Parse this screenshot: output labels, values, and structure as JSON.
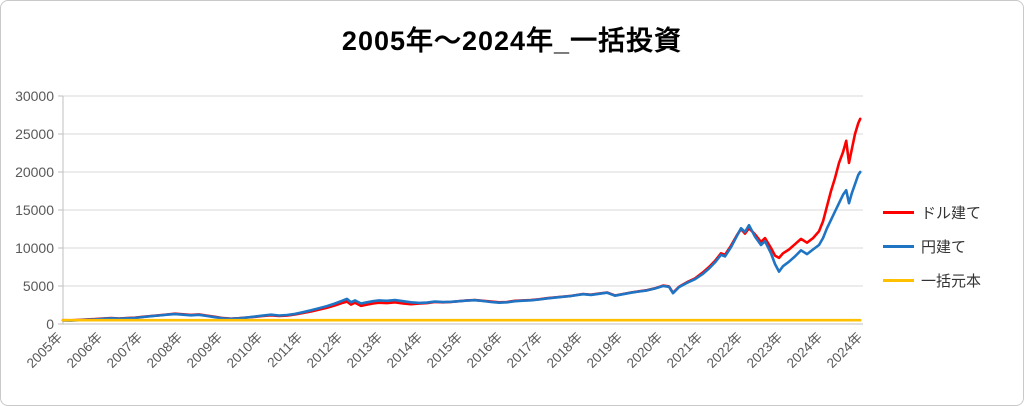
{
  "chart_data": {
    "type": "line",
    "title": "2005年〜2024年_一括投資",
    "xlabel": "",
    "ylabel": "",
    "x_axis": {
      "labels": [
        "2005年",
        "2006年",
        "2007年",
        "2008年",
        "2009年",
        "2010年",
        "2011年",
        "2012年",
        "2013年",
        "2014年",
        "2015年",
        "2016年",
        "2017年",
        "2018年",
        "2019年",
        "2020年",
        "2021年",
        "2022年",
        "2023年",
        "2024年",
        "2024年"
      ],
      "start_year": 2005,
      "years_spanned": 20
    },
    "y_axis": {
      "ticks": [
        0,
        5000,
        10000,
        15000,
        20000,
        25000,
        30000
      ],
      "min": 0,
      "max": 30000
    },
    "grid": true,
    "legend_position": "right",
    "series": [
      {
        "key": "usd",
        "name": "ドル建て",
        "color": "#ff0000",
        "points": [
          [
            2005.0,
            500
          ],
          [
            2005.2,
            490
          ],
          [
            2005.4,
            540
          ],
          [
            2005.6,
            600
          ],
          [
            2005.8,
            640
          ],
          [
            2006.0,
            720
          ],
          [
            2006.2,
            780
          ],
          [
            2006.4,
            730
          ],
          [
            2006.6,
            780
          ],
          [
            2006.8,
            830
          ],
          [
            2007.0,
            950
          ],
          [
            2007.2,
            1050
          ],
          [
            2007.4,
            1150
          ],
          [
            2007.6,
            1250
          ],
          [
            2007.8,
            1350
          ],
          [
            2008.0,
            1280
          ],
          [
            2008.2,
            1200
          ],
          [
            2008.4,
            1260
          ],
          [
            2008.6,
            1100
          ],
          [
            2008.8,
            950
          ],
          [
            2009.0,
            780
          ],
          [
            2009.2,
            700
          ],
          [
            2009.4,
            760
          ],
          [
            2009.6,
            850
          ],
          [
            2009.8,
            950
          ],
          [
            2010.0,
            1050
          ],
          [
            2010.2,
            1150
          ],
          [
            2010.4,
            1050
          ],
          [
            2010.6,
            1100
          ],
          [
            2010.8,
            1250
          ],
          [
            2011.0,
            1450
          ],
          [
            2011.2,
            1650
          ],
          [
            2011.4,
            1900
          ],
          [
            2011.6,
            2150
          ],
          [
            2011.8,
            2450
          ],
          [
            2012.0,
            2800
          ],
          [
            2012.1,
            2950
          ],
          [
            2012.2,
            2550
          ],
          [
            2012.3,
            2800
          ],
          [
            2012.45,
            2400
          ],
          [
            2012.6,
            2550
          ],
          [
            2012.75,
            2700
          ],
          [
            2012.9,
            2800
          ],
          [
            2013.1,
            2750
          ],
          [
            2013.3,
            2850
          ],
          [
            2013.5,
            2700
          ],
          [
            2013.7,
            2600
          ],
          [
            2013.9,
            2680
          ],
          [
            2014.1,
            2750
          ],
          [
            2014.3,
            2900
          ],
          [
            2014.5,
            2850
          ],
          [
            2014.7,
            2900
          ],
          [
            2014.9,
            3000
          ],
          [
            2015.1,
            3100
          ],
          [
            2015.3,
            3150
          ],
          [
            2015.5,
            3050
          ],
          [
            2015.7,
            2950
          ],
          [
            2015.9,
            2850
          ],
          [
            2016.1,
            2900
          ],
          [
            2016.3,
            3050
          ],
          [
            2016.5,
            3100
          ],
          [
            2016.7,
            3150
          ],
          [
            2016.9,
            3250
          ],
          [
            2017.1,
            3400
          ],
          [
            2017.4,
            3550
          ],
          [
            2017.7,
            3700
          ],
          [
            2018.0,
            3950
          ],
          [
            2018.2,
            3850
          ],
          [
            2018.4,
            4000
          ],
          [
            2018.6,
            4150
          ],
          [
            2018.8,
            3750
          ],
          [
            2019.0,
            3950
          ],
          [
            2019.2,
            4150
          ],
          [
            2019.4,
            4300
          ],
          [
            2019.6,
            4450
          ],
          [
            2019.8,
            4700
          ],
          [
            2020.0,
            5050
          ],
          [
            2020.15,
            4950
          ],
          [
            2020.25,
            4100
          ],
          [
            2020.4,
            4900
          ],
          [
            2020.6,
            5500
          ],
          [
            2020.8,
            6000
          ],
          [
            2021.0,
            6800
          ],
          [
            2021.15,
            7500
          ],
          [
            2021.3,
            8300
          ],
          [
            2021.45,
            9300
          ],
          [
            2021.55,
            9100
          ],
          [
            2021.7,
            10300
          ],
          [
            2021.85,
            11700
          ],
          [
            2021.95,
            12500
          ],
          [
            2022.05,
            11900
          ],
          [
            2022.15,
            12600
          ],
          [
            2022.3,
            11800
          ],
          [
            2022.45,
            10800
          ],
          [
            2022.55,
            11300
          ],
          [
            2022.7,
            10000
          ],
          [
            2022.8,
            9000
          ],
          [
            2022.9,
            8700
          ],
          [
            2023.0,
            9300
          ],
          [
            2023.15,
            9800
          ],
          [
            2023.3,
            10500
          ],
          [
            2023.45,
            11200
          ],
          [
            2023.6,
            10700
          ],
          [
            2023.75,
            11300
          ],
          [
            2023.9,
            12200
          ],
          [
            2024.0,
            13500
          ],
          [
            2024.1,
            15500
          ],
          [
            2024.2,
            17500
          ],
          [
            2024.3,
            19200
          ],
          [
            2024.4,
            21200
          ],
          [
            2024.5,
            22600
          ],
          [
            2024.58,
            24100
          ],
          [
            2024.65,
            21200
          ],
          [
            2024.72,
            23000
          ],
          [
            2024.8,
            25000
          ],
          [
            2024.88,
            26400
          ],
          [
            2024.93,
            27000
          ]
        ]
      },
      {
        "key": "jpy",
        "name": "円建て",
        "color": "#1f75c4",
        "points": [
          [
            2005.0,
            470
          ],
          [
            2005.2,
            450
          ],
          [
            2005.4,
            500
          ],
          [
            2005.6,
            560
          ],
          [
            2005.8,
            610
          ],
          [
            2006.0,
            690
          ],
          [
            2006.2,
            750
          ],
          [
            2006.4,
            700
          ],
          [
            2006.6,
            750
          ],
          [
            2006.8,
            800
          ],
          [
            2007.0,
            920
          ],
          [
            2007.2,
            1020
          ],
          [
            2007.4,
            1120
          ],
          [
            2007.6,
            1220
          ],
          [
            2007.8,
            1300
          ],
          [
            2008.0,
            1230
          ],
          [
            2008.2,
            1150
          ],
          [
            2008.4,
            1210
          ],
          [
            2008.6,
            1050
          ],
          [
            2008.8,
            900
          ],
          [
            2009.0,
            740
          ],
          [
            2009.2,
            680
          ],
          [
            2009.4,
            750
          ],
          [
            2009.6,
            860
          ],
          [
            2009.8,
            970
          ],
          [
            2010.0,
            1100
          ],
          [
            2010.2,
            1220
          ],
          [
            2010.4,
            1120
          ],
          [
            2010.6,
            1180
          ],
          [
            2010.8,
            1330
          ],
          [
            2011.0,
            1550
          ],
          [
            2011.2,
            1800
          ],
          [
            2011.4,
            2080
          ],
          [
            2011.6,
            2350
          ],
          [
            2011.8,
            2700
          ],
          [
            2012.0,
            3100
          ],
          [
            2012.1,
            3300
          ],
          [
            2012.2,
            2850
          ],
          [
            2012.3,
            3100
          ],
          [
            2012.45,
            2700
          ],
          [
            2012.6,
            2850
          ],
          [
            2012.75,
            3000
          ],
          [
            2012.9,
            3100
          ],
          [
            2013.1,
            3050
          ],
          [
            2013.3,
            3150
          ],
          [
            2013.5,
            3000
          ],
          [
            2013.7,
            2850
          ],
          [
            2013.9,
            2780
          ],
          [
            2014.1,
            2820
          ],
          [
            2014.3,
            2950
          ],
          [
            2014.5,
            2880
          ],
          [
            2014.7,
            2920
          ],
          [
            2014.9,
            3000
          ],
          [
            2015.1,
            3080
          ],
          [
            2015.3,
            3130
          ],
          [
            2015.5,
            3020
          ],
          [
            2015.7,
            2900
          ],
          [
            2015.9,
            2800
          ],
          [
            2016.1,
            2850
          ],
          [
            2016.3,
            3000
          ],
          [
            2016.5,
            3060
          ],
          [
            2016.7,
            3120
          ],
          [
            2016.9,
            3220
          ],
          [
            2017.1,
            3370
          ],
          [
            2017.4,
            3520
          ],
          [
            2017.7,
            3680
          ],
          [
            2018.0,
            3920
          ],
          [
            2018.2,
            3830
          ],
          [
            2018.4,
            3980
          ],
          [
            2018.6,
            4120
          ],
          [
            2018.8,
            3720
          ],
          [
            2019.0,
            3920
          ],
          [
            2019.2,
            4120
          ],
          [
            2019.4,
            4270
          ],
          [
            2019.6,
            4420
          ],
          [
            2019.8,
            4670
          ],
          [
            2020.0,
            5000
          ],
          [
            2020.15,
            4900
          ],
          [
            2020.25,
            4050
          ],
          [
            2020.4,
            4850
          ],
          [
            2020.6,
            5420
          ],
          [
            2020.8,
            5900
          ],
          [
            2021.0,
            6600
          ],
          [
            2021.15,
            7300
          ],
          [
            2021.3,
            8100
          ],
          [
            2021.45,
            9100
          ],
          [
            2021.55,
            8900
          ],
          [
            2021.7,
            10100
          ],
          [
            2021.85,
            11600
          ],
          [
            2021.95,
            12600
          ],
          [
            2022.05,
            12100
          ],
          [
            2022.15,
            13000
          ],
          [
            2022.3,
            11500
          ],
          [
            2022.45,
            10400
          ],
          [
            2022.55,
            10900
          ],
          [
            2022.7,
            9300
          ],
          [
            2022.8,
            7900
          ],
          [
            2022.9,
            6900
          ],
          [
            2023.0,
            7600
          ],
          [
            2023.15,
            8200
          ],
          [
            2023.3,
            8900
          ],
          [
            2023.45,
            9700
          ],
          [
            2023.6,
            9200
          ],
          [
            2023.75,
            9800
          ],
          [
            2023.9,
            10400
          ],
          [
            2024.0,
            11300
          ],
          [
            2024.1,
            12600
          ],
          [
            2024.2,
            13700
          ],
          [
            2024.3,
            14800
          ],
          [
            2024.4,
            15900
          ],
          [
            2024.5,
            17000
          ],
          [
            2024.58,
            17600
          ],
          [
            2024.65,
            15900
          ],
          [
            2024.72,
            17200
          ],
          [
            2024.8,
            18400
          ],
          [
            2024.88,
            19600
          ],
          [
            2024.93,
            20000
          ]
        ]
      },
      {
        "key": "principal",
        "name": "一括元本",
        "color": "#ffc000",
        "points": [
          [
            2005.0,
            500
          ],
          [
            2024.93,
            500
          ]
        ]
      }
    ]
  },
  "colors": {
    "axis_text": "#595959",
    "gridline": "#d9d9d9",
    "axis_line": "#bfbfbf",
    "legend_text": "#333333",
    "title_text": "#000000",
    "background": "#ffffff"
  }
}
